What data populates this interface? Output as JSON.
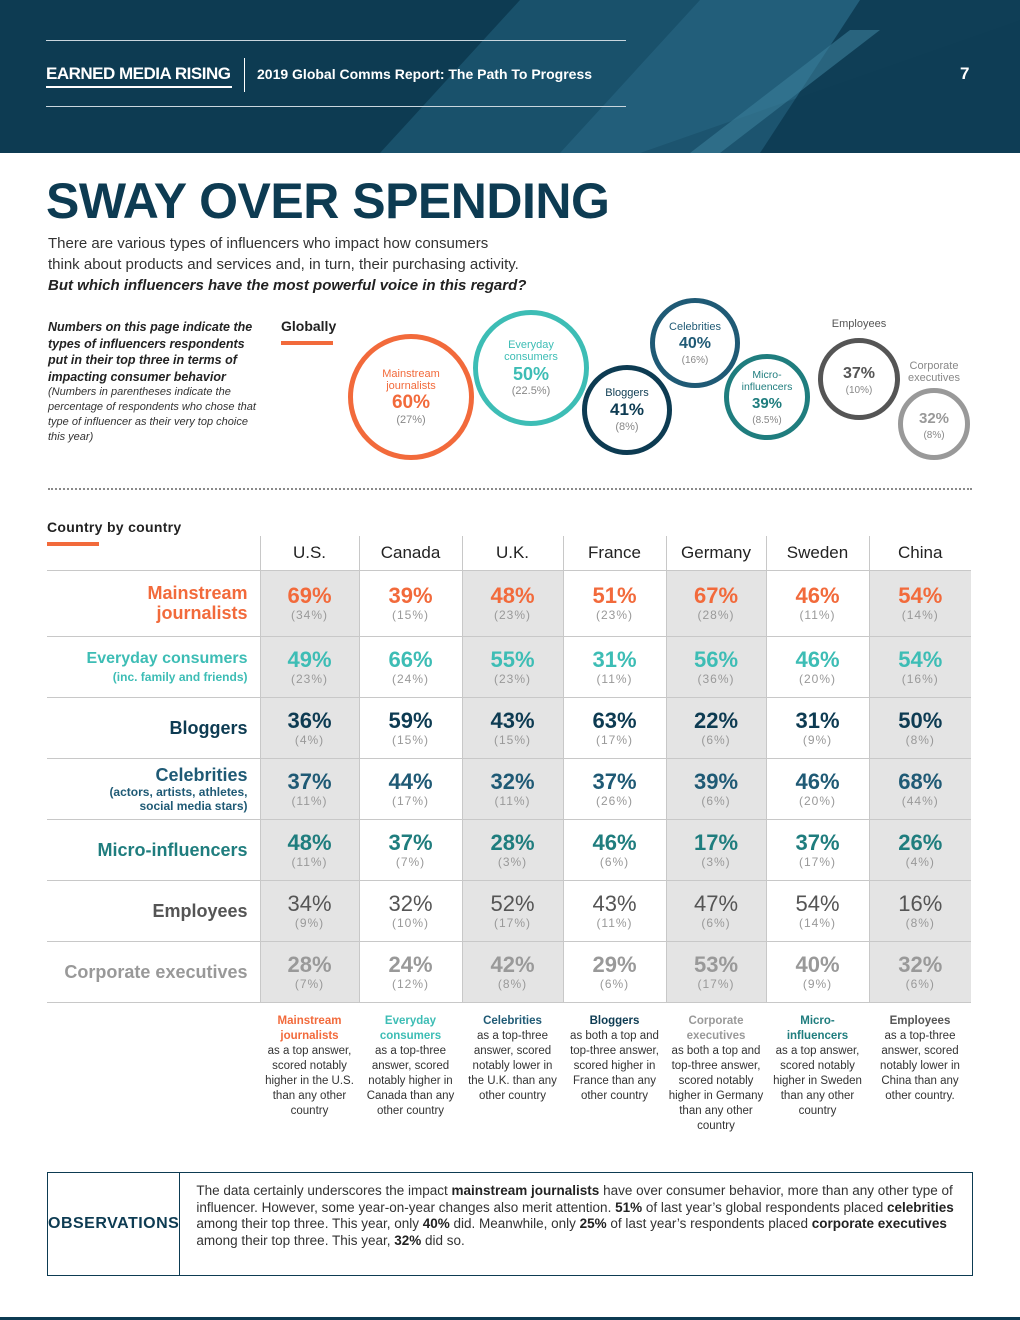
{
  "header": {
    "brand": "EARNED MEDIA RISING",
    "report_title": "2019 Global Comms Report: The Path To Progress",
    "page_number": "7"
  },
  "title": "SWAY OVER SPENDING",
  "intro": {
    "line1": "There are various types of influencers who impact how consumers",
    "line2": "think about products and services and, in turn, their purchasing activity.",
    "question": "But which influencers have the most powerful voice in this regard?"
  },
  "note": {
    "main": "Numbers on this page indicate the types of influencers respondents put in their top three in terms of impacting consumer behavior",
    "small": "(Numbers in parentheses indicate the percentage of respondents who chose that type of influencer as their very top choice this year)"
  },
  "global": {
    "heading": "Globally",
    "bubbles": [
      {
        "label": "Mainstream journalists",
        "pct": "60%",
        "top": "(27%)",
        "color": "#f26a3b"
      },
      {
        "label": "Everyday consumers",
        "pct": "50%",
        "top": "(22.5%)",
        "color": "#3dbdb5"
      },
      {
        "label": "Bloggers",
        "pct": "41%",
        "top": "(8%)",
        "color": "#0d3b52"
      },
      {
        "label": "Celebrities",
        "pct": "40%",
        "top": "(16%)",
        "color": "#1f5a75"
      },
      {
        "label": "Micro-influencers",
        "pct": "39%",
        "top": "(8.5%)",
        "color": "#1f7d7e"
      },
      {
        "label": "Employees",
        "pct": "37%",
        "top": "(10%)",
        "color": "#555555"
      },
      {
        "label": "Corporate executives",
        "pct": "32%",
        "top": "(8%)",
        "color": "#999999"
      }
    ]
  },
  "country": {
    "heading": "Country by country",
    "columns": [
      "U.S.",
      "Canada",
      "U.K.",
      "France",
      "Germany",
      "Sweden",
      "China"
    ],
    "rows": [
      {
        "label": "Mainstream journalists",
        "label_line1": "Mainstream",
        "label_line2": "journalists",
        "color": "#f26a3b",
        "values": [
          "69%",
          "39%",
          "48%",
          "51%",
          "67%",
          "46%",
          "54%"
        ],
        "tops": [
          "(34%)",
          "(15%)",
          "(23%)",
          "(23%)",
          "(28%)",
          "(11%)",
          "(14%)"
        ]
      },
      {
        "label": "Everyday consumers",
        "sub": "(inc. family and friends)",
        "color": "#3dbdb5",
        "values": [
          "49%",
          "66%",
          "55%",
          "31%",
          "56%",
          "46%",
          "54%"
        ],
        "tops": [
          "(23%)",
          "(24%)",
          "(23%)",
          "(11%)",
          "(36%)",
          "(20%)",
          "(16%)"
        ]
      },
      {
        "label": "Bloggers",
        "color": "#0d3b52",
        "values": [
          "36%",
          "59%",
          "43%",
          "63%",
          "22%",
          "31%",
          "50%"
        ],
        "tops": [
          "(4%)",
          "(15%)",
          "(15%)",
          "(17%)",
          "(6%)",
          "(9%)",
          "(8%)"
        ]
      },
      {
        "label": "Celebrities",
        "sub1": "(actors, artists, athletes,",
        "sub2": "social media stars)",
        "color": "#1f5a75",
        "values": [
          "37%",
          "44%",
          "32%",
          "37%",
          "39%",
          "46%",
          "68%"
        ],
        "tops": [
          "(11%)",
          "(17%)",
          "(11%)",
          "(26%)",
          "(6%)",
          "(20%)",
          "(44%)"
        ]
      },
      {
        "label": "Micro-influencers",
        "color": "#1f7d7e",
        "values": [
          "48%",
          "37%",
          "28%",
          "46%",
          "17%",
          "37%",
          "26%"
        ],
        "tops": [
          "(11%)",
          "(7%)",
          "(3%)",
          "(6%)",
          "(3%)",
          "(17%)",
          "(4%)"
        ]
      },
      {
        "label": "Employees",
        "color": "#555555",
        "values": [
          "34%",
          "32%",
          "52%",
          "43%",
          "47%",
          "54%",
          "16%"
        ],
        "tops": [
          "(9%)",
          "(10%)",
          "(17%)",
          "(11%)",
          "(6%)",
          "(14%)",
          "(8%)"
        ]
      },
      {
        "label": "Corporate executives",
        "color": "#999999",
        "values": [
          "28%",
          "24%",
          "42%",
          "29%",
          "53%",
          "40%",
          "32%"
        ],
        "tops": [
          "(7%)",
          "(12%)",
          "(8%)",
          "(6%)",
          "(17%)",
          "(9%)",
          "(6%)"
        ]
      }
    ]
  },
  "callouts": [
    {
      "head": "Mainstream journalists",
      "text": "as a top answer, scored notably higher in the U.S. than any other country",
      "color": "#f26a3b"
    },
    {
      "head": "Everyday consumers",
      "text": "as a top-three answer, scored notably higher in Canada than any other country",
      "color": "#3dbdb5"
    },
    {
      "head": "Celebrities",
      "text": "as a top-three answer, scored notably lower in the U.K. than any other country",
      "color": "#1f5a75"
    },
    {
      "head": "Bloggers",
      "text": "as both a top and top-three answer, scored higher in France than any other country",
      "color": "#0d3b52"
    },
    {
      "head": "Corporate executives",
      "text": "as both a top and top-three answer, scored notably higher in Germany than any other country",
      "color": "#999999"
    },
    {
      "head": "Micro-influencers",
      "text": "as a top answer, scored notably higher in Sweden than any other country",
      "color": "#1f7d7e"
    },
    {
      "head": "Employees",
      "text": "as a top-three answer, scored notably lower in China than any other country.",
      "color": "#555555"
    }
  ],
  "observations": {
    "label": "OBSERVATIONS",
    "t1": "The data certainly underscores the impact ",
    "b1": "mainstream journalists",
    "t2": " have over consumer behavior, more than any other type of influencer. However, some year-on-year changes also merit attention. ",
    "b2": "51%",
    "t3": " of last year’s global respondents placed ",
    "b3": "celebrities",
    "t4": " among their top three. This year, only ",
    "b4": "40%",
    "t5": " did. Meanwhile, only ",
    "b5": "25%",
    "t6": " of last year’s respondents placed ",
    "b6": "corporate executives",
    "t7": " among their top three. This year, ",
    "b7": "32%",
    "t8": " did so."
  }
}
